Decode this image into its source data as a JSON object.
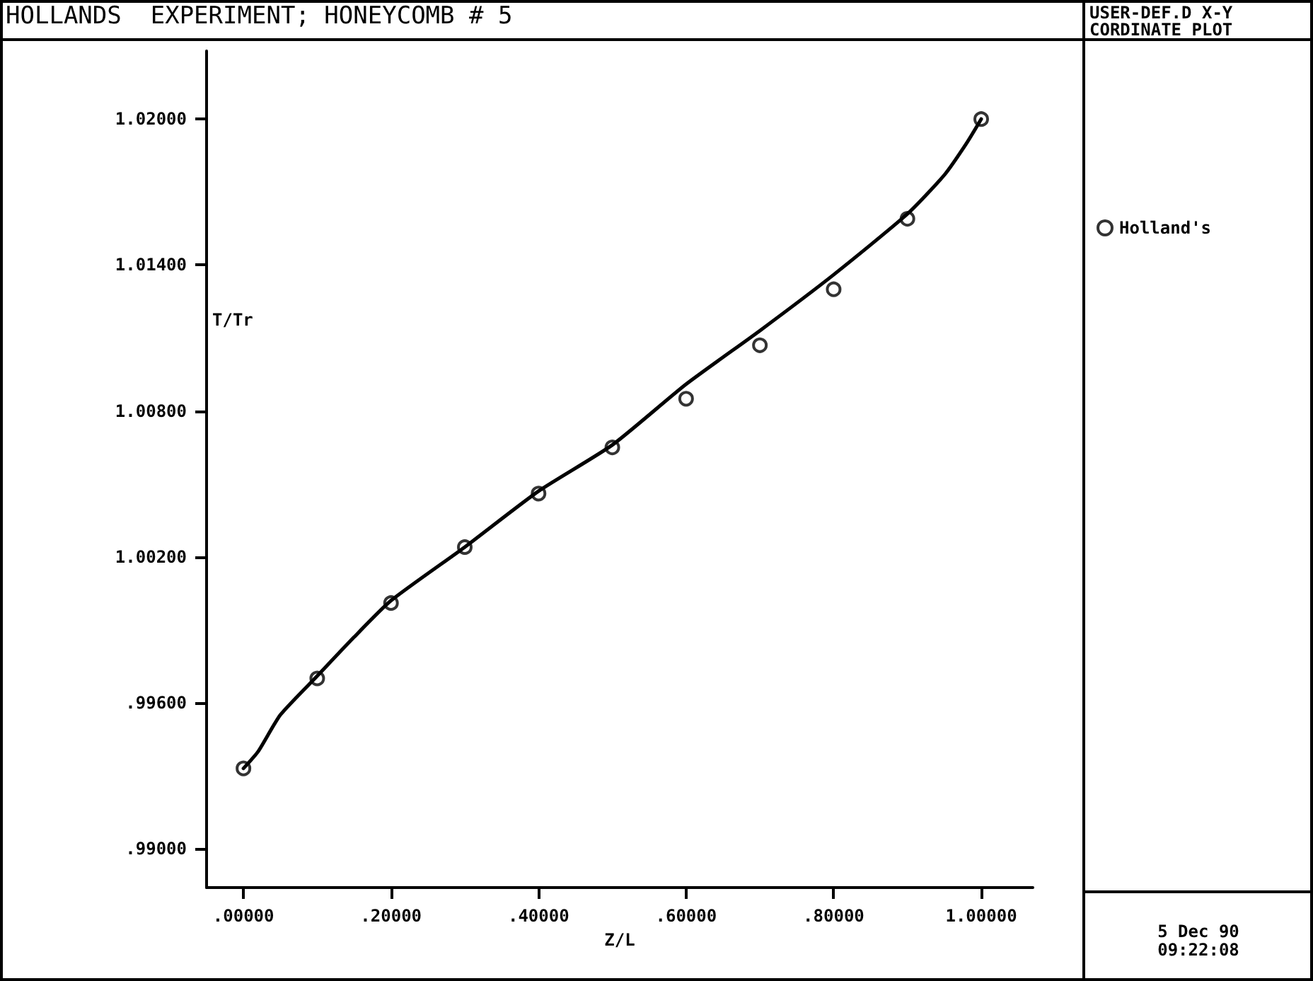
{
  "chart_data": {
    "type": "scatter",
    "title": "HOLLANDS  EXPERIMENT; HONEYCOMB # 5",
    "subtitle": "USER-DEF.D X-Y CORDINATE PLOT",
    "xlabel": "Z/L",
    "ylabel": "T/Tr",
    "annotations": [
      "5 Dec 90",
      "09:22:08"
    ],
    "series": [
      {
        "name": "Holland's",
        "marker": "circle",
        "color": "#000000",
        "x": [
          0,
          0.1,
          0.2,
          0.3,
          0.4,
          0.5,
          0.6,
          0.7,
          0.8,
          0.9,
          1.0
        ],
        "values": [
          0.9933,
          0.997,
          1.0001,
          1.0024,
          1.0046,
          1.0065,
          1.0085,
          1.0107,
          1.013,
          1.0159,
          1.02
        ]
      },
      {
        "type": "line",
        "marker": "none",
        "line_style": "solid",
        "color": "#000000",
        "x": [
          0,
          0.02,
          0.05,
          0.1,
          0.15,
          0.2,
          0.3,
          0.4,
          0.5,
          0.6,
          0.7,
          0.8,
          0.9,
          0.95,
          0.98,
          1.0
        ],
        "values": [
          0.9933,
          0.994,
          0.9955,
          0.9971,
          0.9987,
          1.0002,
          1.0024,
          1.0047,
          1.0066,
          1.0091,
          1.0113,
          1.0136,
          1.0161,
          1.0177,
          1.019,
          1.02
        ]
      }
    ],
    "xlim": [
      -0.05,
      1.07
    ],
    "ylim": [
      0.9884,
      1.0228
    ],
    "xticks": [
      {
        "value": 0,
        "label": ".00000"
      },
      {
        "value": 0.2,
        "label": ".20000"
      },
      {
        "value": 0.4,
        "label": ".40000"
      },
      {
        "value": 0.6,
        "label": ".60000"
      },
      {
        "value": 0.8,
        "label": ".80000"
      },
      {
        "value": 1.0,
        "label": "1.00000"
      }
    ],
    "yticks": [
      {
        "value": 0.99,
        "label": ".99000"
      },
      {
        "value": 0.996,
        "label": ".99600"
      },
      {
        "value": 1.002,
        "label": "1.00200"
      },
      {
        "value": 1.008,
        "label": "1.00800"
      },
      {
        "value": 1.014,
        "label": "1.01400"
      },
      {
        "value": 1.02,
        "label": "1.02000"
      }
    ],
    "grid": false,
    "legend": "right"
  }
}
